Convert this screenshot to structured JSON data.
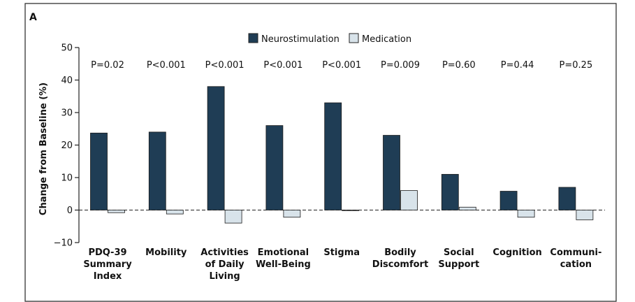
{
  "panel_label": "A",
  "colors": {
    "neurostimulation": "#1f3d55",
    "medication": "#d8e3ea",
    "axis": "#222222",
    "border": "#333333"
  },
  "chart_data": {
    "type": "bar",
    "title": "",
    "xlabel": "",
    "ylabel": "Change from Baseline (%)",
    "ylim": [
      -10,
      50
    ],
    "yticks": [
      -10,
      0,
      10,
      20,
      30,
      40,
      50
    ],
    "ytick_labels": [
      "−10",
      "0",
      "10",
      "20",
      "30",
      "40",
      "50"
    ],
    "legend_position": "top-center",
    "categories": [
      [
        "PDQ-39",
        "Summary",
        "Index"
      ],
      [
        "Mobility"
      ],
      [
        "Activities",
        "of Daily",
        "Living"
      ],
      [
        "Emotional",
        "Well-Being"
      ],
      [
        "Stigma"
      ],
      [
        "Bodily",
        "Discomfort"
      ],
      [
        "Social",
        "Support"
      ],
      [
        "Cognition"
      ],
      [
        "Communi-",
        "cation"
      ]
    ],
    "p_values": [
      "P=0.02",
      "P<0.001",
      "P<0.001",
      "P<0.001",
      "P<0.001",
      "P=0.009",
      "P=0.60",
      "P=0.44",
      "P=0.25"
    ],
    "series": [
      {
        "name": "Neurostimulation",
        "values": [
          23.7,
          24,
          38,
          26,
          33,
          23,
          11,
          5.8,
          7
        ]
      },
      {
        "name": "Medication",
        "values": [
          -0.8,
          -1.2,
          -4,
          -2.2,
          0,
          6,
          0.9,
          -2.2,
          -3
        ]
      }
    ],
    "baseline_dashed": true
  }
}
